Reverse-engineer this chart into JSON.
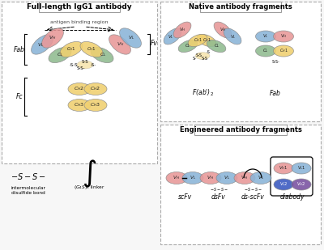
{
  "bg_color": "#f7f7f7",
  "colors": {
    "blue": "#8ab4d8",
    "pink": "#e89898",
    "green": "#90bb90",
    "yellow": "#f0d070",
    "purple": "#c0a8d8",
    "light_blue": "#a8c8e8",
    "dark_blue": "#3858c0",
    "dark_purple": "#7850a0"
  },
  "title_fl": "Full-length IgG1 antibody",
  "title_native": "Native antibody fragments",
  "title_engineered": "Engineered antibody fragments"
}
